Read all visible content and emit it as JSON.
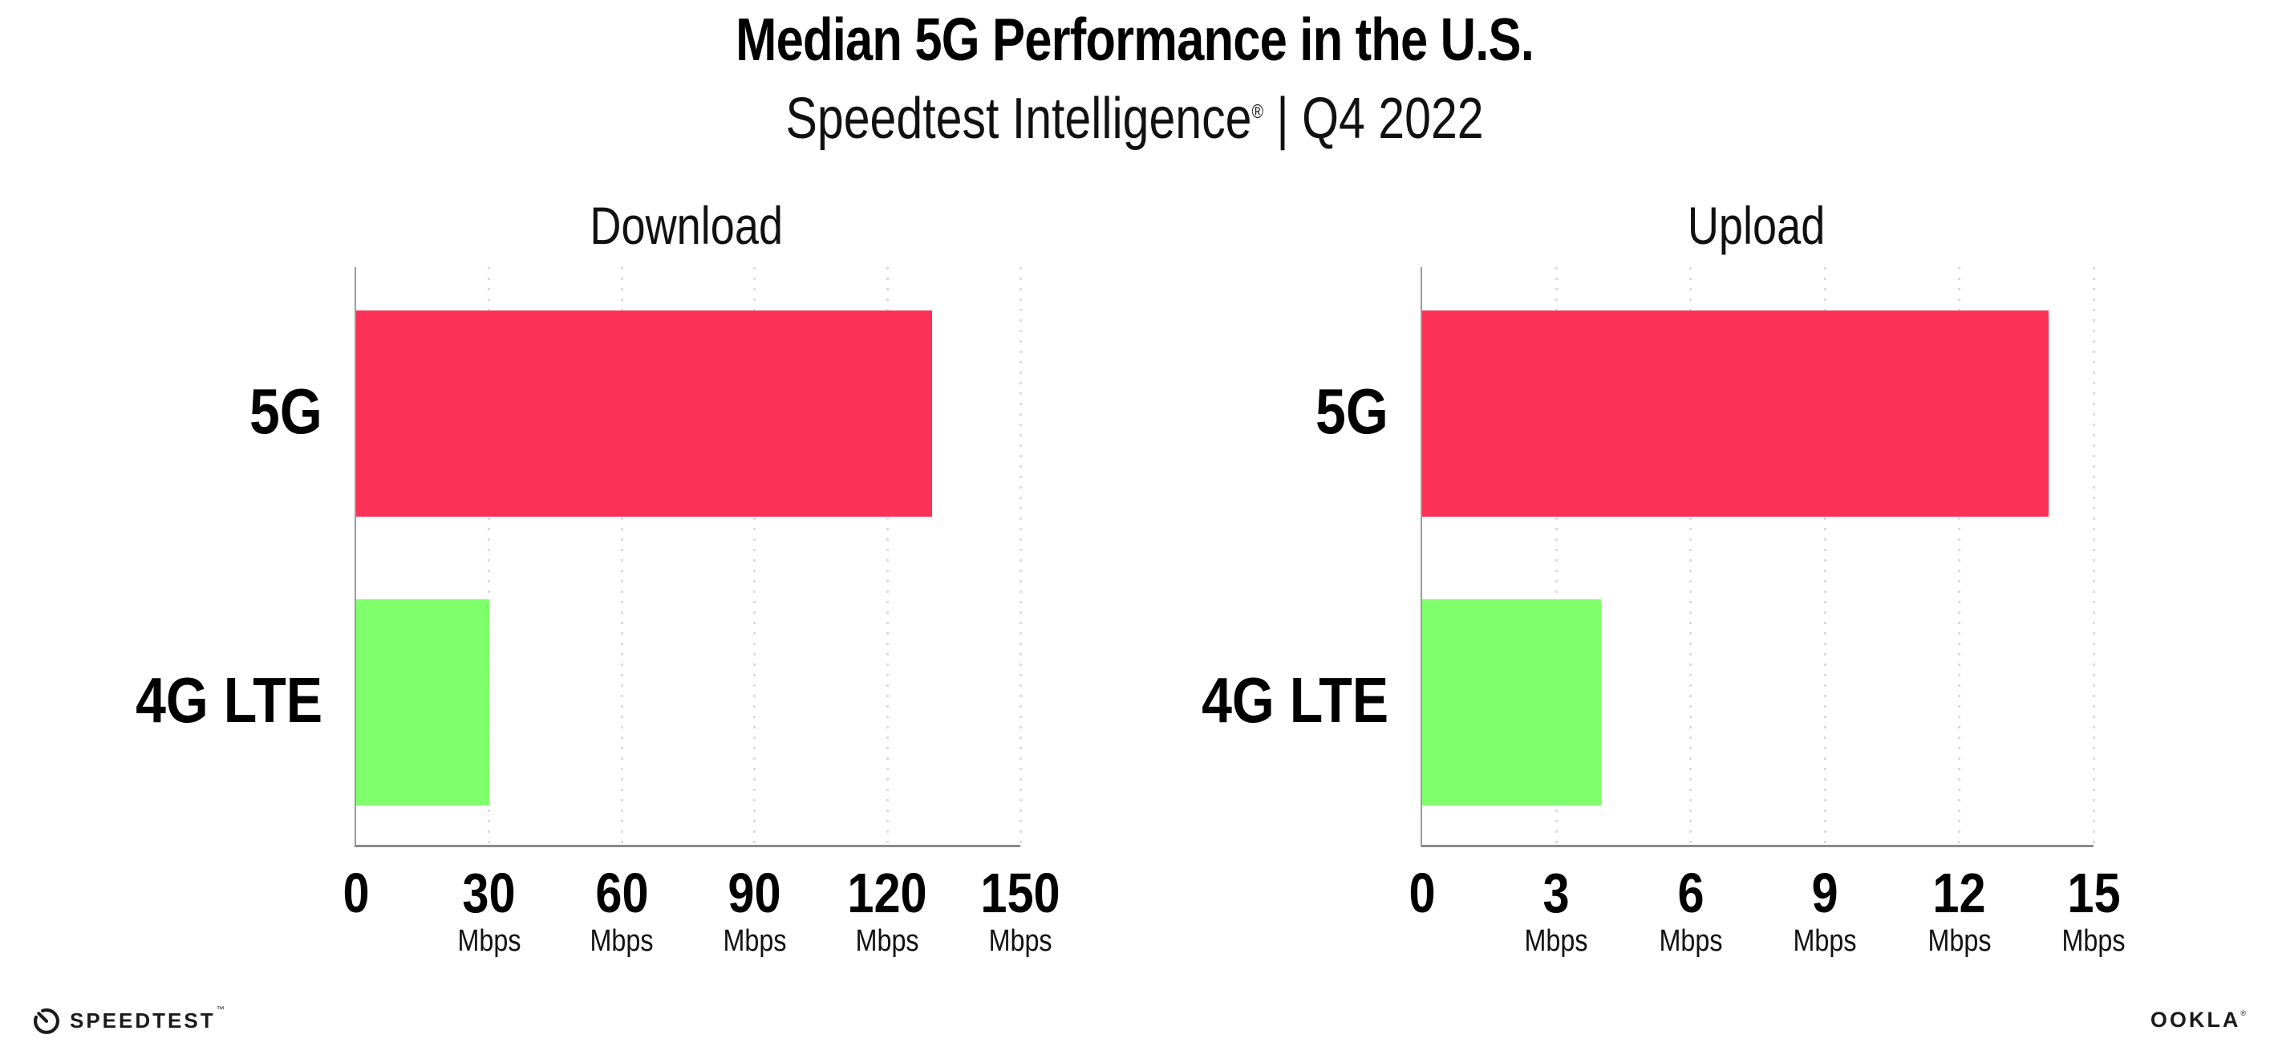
{
  "header": {
    "title": "Median 5G Performance in the U.S.",
    "subtitle_brand": "Speedtest Intelligence",
    "subtitle_reg": "®",
    "subtitle_period": " | Q4 2022"
  },
  "colors": {
    "bar_5g": "#FC3157",
    "bar_4g_lte": "#7FFF6B",
    "x_axis": "#8A8A8A",
    "y_axis": "#9B9B9B",
    "gridline": "#D9DCE9",
    "text": "#000000"
  },
  "chart_data": [
    {
      "type": "bar",
      "orientation": "horizontal",
      "title": "Download",
      "categories": [
        "5G",
        "4G LTE"
      ],
      "values": [
        130,
        30
      ],
      "unit": "Mbps",
      "xlim": [
        0,
        150
      ],
      "xticks": [
        0,
        30,
        60,
        90,
        120,
        150
      ],
      "bar_colors": [
        "#FC3157",
        "#7FFF6B"
      ],
      "grid": "dotted vertical gridlines at each tick",
      "legend": "none",
      "data_labels": "none"
    },
    {
      "type": "bar",
      "orientation": "horizontal",
      "title": "Upload",
      "categories": [
        "5G",
        "4G LTE"
      ],
      "values": [
        14,
        4
      ],
      "unit": "Mbps",
      "xlim": [
        0,
        15
      ],
      "xticks": [
        0,
        3,
        6,
        9,
        12,
        15
      ],
      "bar_colors": [
        "#FC3157",
        "#7FFF6B"
      ],
      "grid": "dotted vertical gridlines at each tick",
      "legend": "none",
      "data_labels": "none"
    }
  ],
  "footer": {
    "speedtest_logo_text": "SPEEDTEST",
    "speedtest_logo_mark": "™",
    "ookla_logo_text": "OOKLA",
    "ookla_logo_mark": "®"
  }
}
